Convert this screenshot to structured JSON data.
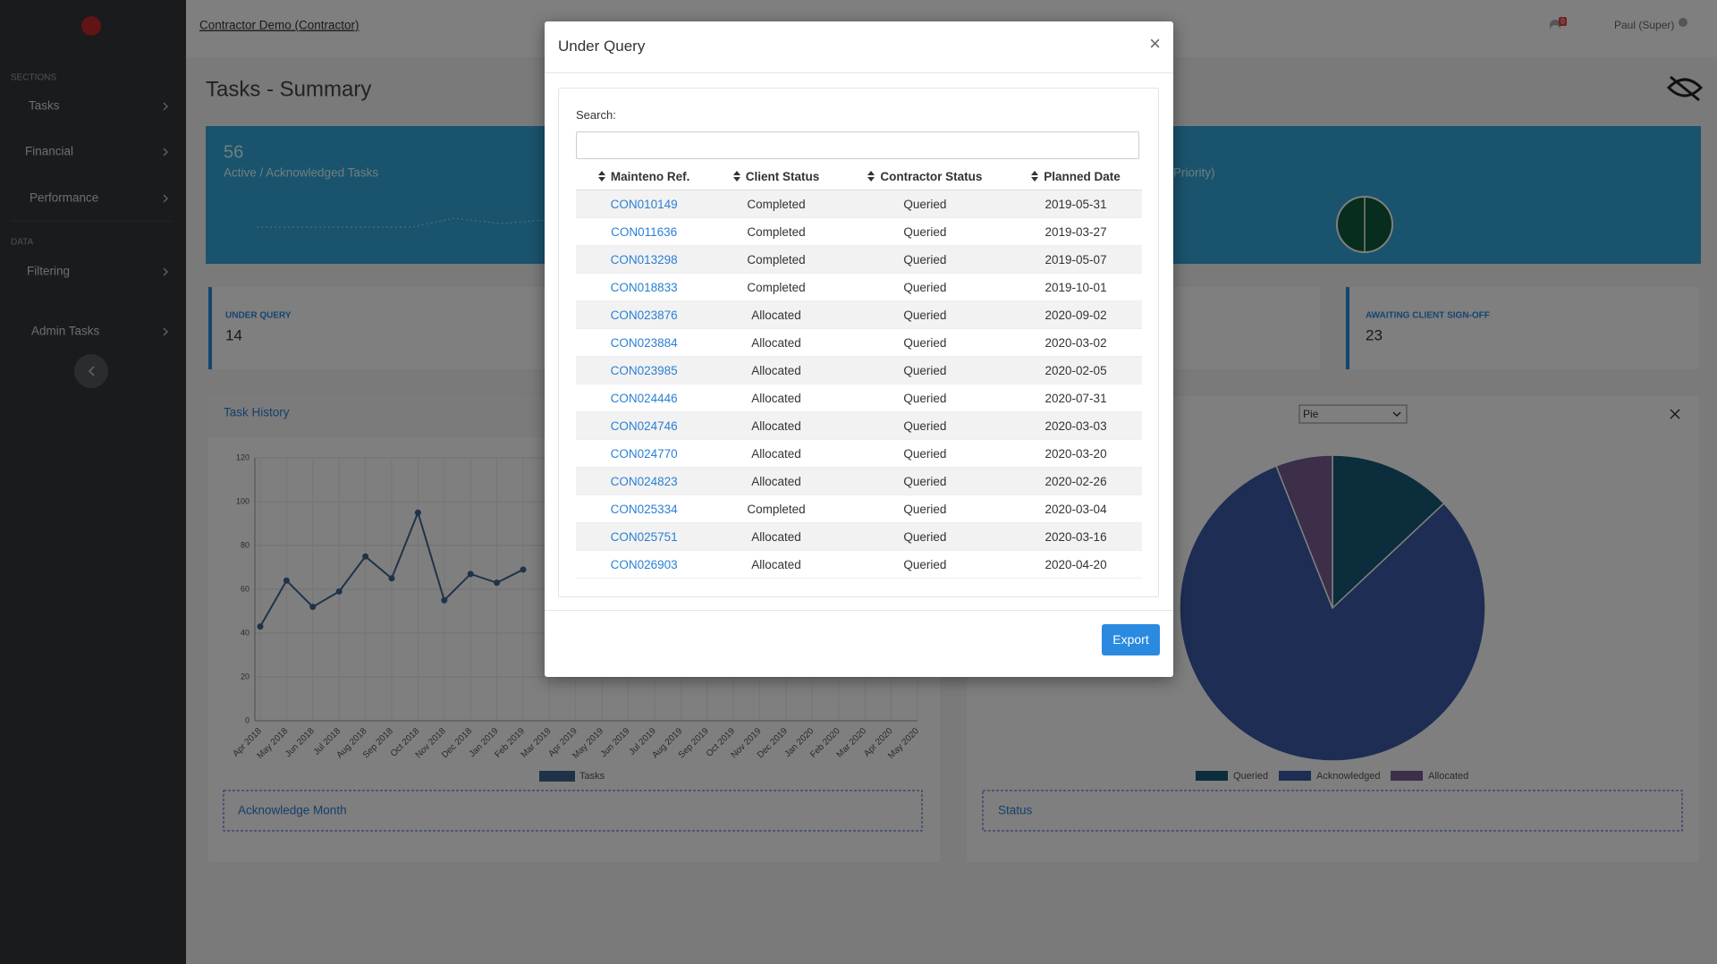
{
  "header": {
    "breadcrumb": "Contractor Demo (Contractor)",
    "notifications": "0",
    "user": "Paul (Super)"
  },
  "sidebar": {
    "sections_label": "SECTIONS",
    "items": [
      "Tasks",
      "Financial",
      "Performance"
    ],
    "data_label": "DATA",
    "data_items": [
      "Filtering"
    ],
    "admin": "Admin Tasks"
  },
  "page": {
    "title": "Tasks - Summary",
    "banner": {
      "count": "56",
      "label": "Active / Acknowledged Tasks",
      "right_label": "Priority)"
    },
    "cards": [
      {
        "label": "UNDER QUERY",
        "value": "14"
      },
      {
        "label": "AWAITING CLIENT SIGN-OFF",
        "value": "23"
      }
    ],
    "task_history": {
      "title": "Task History",
      "filter": "Acknowledge Month"
    },
    "status_panel": {
      "select": "Pie",
      "filter": "Status"
    }
  },
  "chart_data": [
    {
      "type": "line",
      "categories": [
        "Apr 2018",
        "May 2018",
        "Jun 2018",
        "Jul 2018",
        "Aug 2018",
        "Sep 2018",
        "Oct 2018",
        "Nov 2018",
        "Dec 2018",
        "Jan 2019",
        "Feb 2019",
        "Mar 2019",
        "Apr 2019",
        "May 2019",
        "Jun 2019",
        "Jul 2019",
        "Aug 2019",
        "Sep 2019",
        "Oct 2019",
        "Nov 2019",
        "Dec 2019",
        "Jan 2020",
        "Feb 2020",
        "Mar 2020",
        "Apr 2020",
        "May 2020"
      ],
      "series": [
        {
          "name": "Tasks",
          "color": "#3e6690",
          "values": [
            43,
            64,
            52,
            59,
            75,
            65,
            95,
            55,
            67,
            63,
            69,
            null,
            null,
            null,
            null,
            null,
            null,
            null,
            null,
            null,
            null,
            null,
            null,
            null,
            null,
            null
          ]
        }
      ],
      "ylim": [
        0,
        120
      ],
      "yticks": [
        0,
        20,
        40,
        60,
        80,
        100,
        120
      ],
      "grid": true
    },
    {
      "type": "pie",
      "categories": [
        "Queried",
        "Acknowledged",
        "Allocated"
      ],
      "values": [
        13,
        81,
        6
      ],
      "colors": [
        "#175a78",
        "#3a5aa8",
        "#7a5c94"
      ]
    }
  ],
  "modal": {
    "title": "Under Query",
    "close": "×",
    "search_label": "Search:",
    "columns": [
      "Mainteno Ref.",
      "Client Status",
      "Contractor Status",
      "Planned Date"
    ],
    "rows": [
      [
        "CON010149",
        "Completed",
        "Queried",
        "2019-05-31"
      ],
      [
        "CON011636",
        "Completed",
        "Queried",
        "2019-03-27"
      ],
      [
        "CON013298",
        "Completed",
        "Queried",
        "2019-05-07"
      ],
      [
        "CON018833",
        "Completed",
        "Queried",
        "2019-10-01"
      ],
      [
        "CON023876",
        "Allocated",
        "Queried",
        "2020-09-02"
      ],
      [
        "CON023884",
        "Allocated",
        "Queried",
        "2020-03-02"
      ],
      [
        "CON023985",
        "Allocated",
        "Queried",
        "2020-02-05"
      ],
      [
        "CON024446",
        "Allocated",
        "Queried",
        "2020-07-31"
      ],
      [
        "CON024746",
        "Allocated",
        "Queried",
        "2020-03-03"
      ],
      [
        "CON024770",
        "Allocated",
        "Queried",
        "2020-03-20"
      ],
      [
        "CON024823",
        "Allocated",
        "Queried",
        "2020-02-26"
      ],
      [
        "CON025334",
        "Completed",
        "Queried",
        "2020-03-04"
      ],
      [
        "CON025751",
        "Allocated",
        "Queried",
        "2020-03-16"
      ],
      [
        "CON026903",
        "Allocated",
        "Queried",
        "2020-04-20"
      ]
    ],
    "export": "Export"
  }
}
